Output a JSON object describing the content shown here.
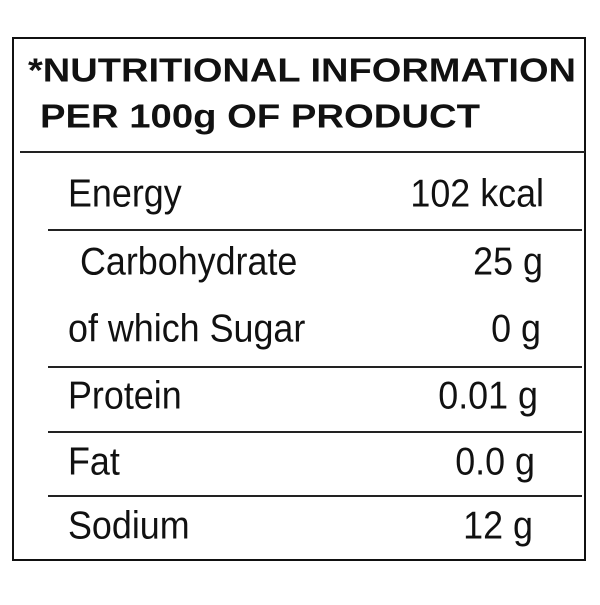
{
  "header": {
    "title": "*NUTRITIONAL INFORMATION",
    "subtitle": "PER 100g OF PRODUCT"
  },
  "table": {
    "rows": [
      [
        "Energy",
        "102 kcal"
      ],
      [
        "Carbohydrate",
        "25 g"
      ],
      [
        "of which Sugar",
        "0 g"
      ],
      [
        "Protein",
        "0.01 g"
      ],
      [
        "Fat",
        "0.0 g"
      ],
      [
        "Sodium",
        "12 g"
      ]
    ]
  }
}
